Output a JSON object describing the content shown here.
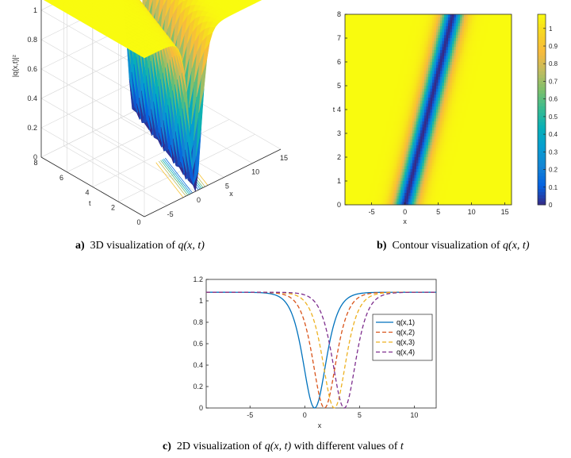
{
  "captions": {
    "a": {
      "tag": "a)",
      "text": "3D visualization of",
      "math": "q(x, t)"
    },
    "b": {
      "tag": "b)",
      "text": "Contour visualization of",
      "math": "q(x, t)"
    },
    "c": {
      "tag": "c)",
      "text": "2D visualization of",
      "math": "q(x, t)",
      "suffix": "with different values of",
      "var": "t"
    }
  },
  "chart_data": [
    {
      "id": "a",
      "type": "surface",
      "zlabel": "|q(x,t)|²",
      "xlabel": "x",
      "ylabel": "t",
      "xlim": [
        -9,
        15
      ],
      "ylim": [
        0,
        8
      ],
      "zlim": [
        0,
        1.08
      ],
      "xticks": [
        "-5",
        "0",
        "5",
        "10",
        "15"
      ],
      "yticks": [
        "0",
        "2",
        "4",
        "6",
        "8"
      ],
      "zticks": [
        "0",
        "0.2",
        "0.4",
        "0.6",
        "0.8",
        "1"
      ],
      "grid": true
    },
    {
      "id": "b",
      "type": "heatmap",
      "xlabel": "x",
      "ylabel": "t",
      "xlim": [
        -9,
        16
      ],
      "ylim": [
        0,
        8
      ],
      "xticks": [
        "-5",
        "0",
        "5",
        "10",
        "15"
      ],
      "yticks": [
        "0",
        "1",
        "2",
        "3",
        "4",
        "5",
        "6",
        "7",
        "8"
      ],
      "colorbar_ticks": [
        "0",
        "0.1",
        "0.2",
        "0.3",
        "0.4",
        "0.5",
        "0.6",
        "0.7",
        "0.8",
        "0.9",
        "1"
      ],
      "colorbar_range": [
        0,
        1.08
      ]
    },
    {
      "id": "c",
      "type": "line",
      "xlabel": "x",
      "xlim": [
        -9,
        12
      ],
      "ylim": [
        0,
        1.2
      ],
      "xticks": [
        "-5",
        "0",
        "5",
        "10"
      ],
      "yticks": [
        "0",
        "0.2",
        "0.4",
        "0.6",
        "0.8",
        "1",
        "1.2"
      ],
      "legend_position": "right",
      "series": [
        {
          "name": "q(x,1)",
          "t": 1,
          "color": "#0072bd",
          "dash": "solid"
        },
        {
          "name": "q(x,2)",
          "t": 2,
          "color": "#d95319",
          "dash": "dashed"
        },
        {
          "name": "q(x,3)",
          "t": 3,
          "color": "#edb120",
          "dash": "dashed"
        },
        {
          "name": "q(x,4)",
          "t": 4,
          "color": "#7e2f8e",
          "dash": "dashed"
        }
      ]
    }
  ]
}
